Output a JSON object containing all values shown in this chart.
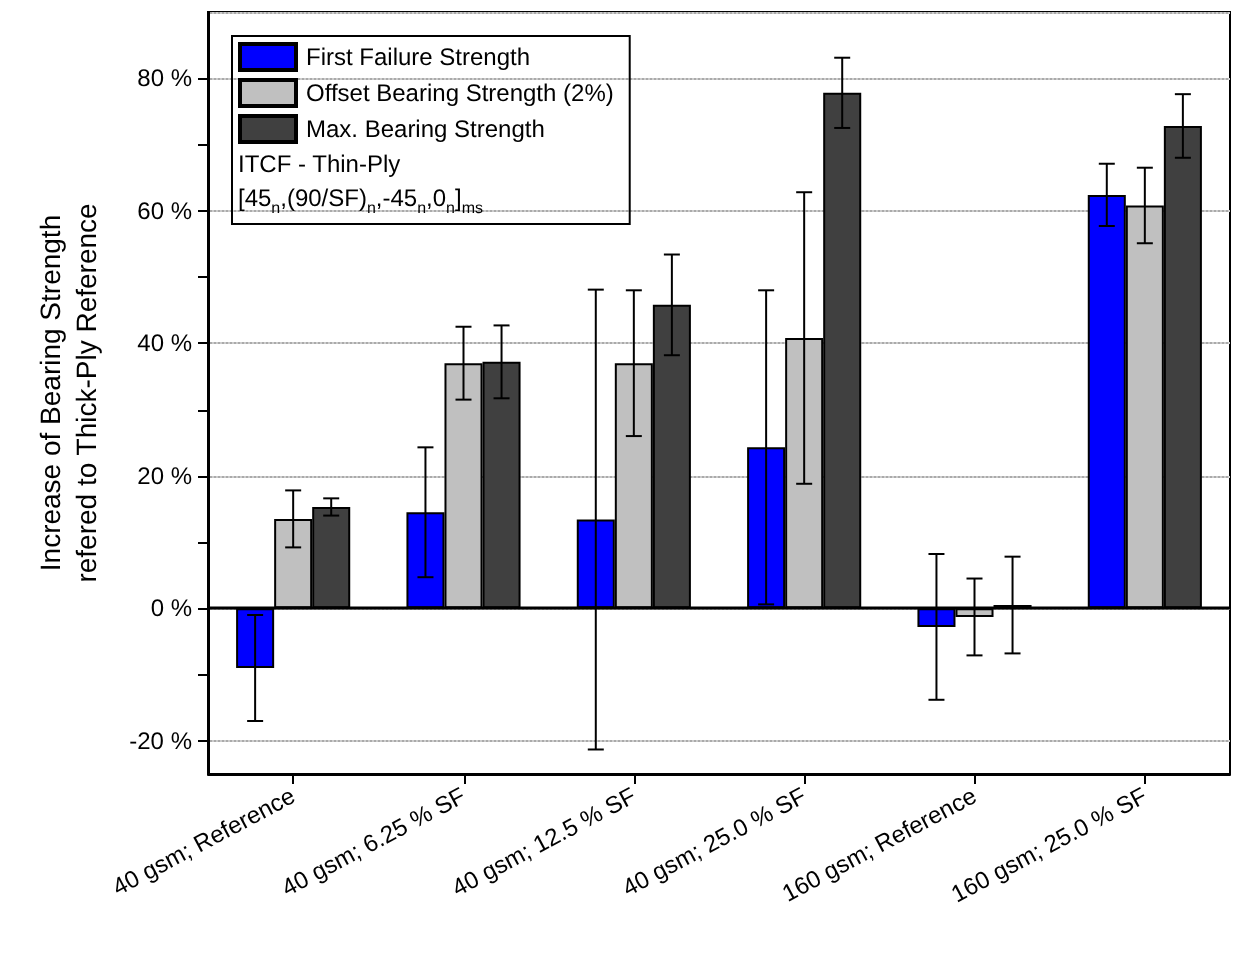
{
  "chart_data": {
    "type": "bar",
    "ylabel": "Increase of Bearing Strength\nrefered to Thick-Ply Reference",
    "categories": [
      "40 gsm; Reference",
      "40 gsm; 6.25 % SF",
      "40 gsm; 12.5 % SF",
      "40 gsm; 25.0 % SF",
      "160 gsm; Reference",
      "160 gsm; 25.0 % SF"
    ],
    "series": [
      {
        "name": "First Failure Strength",
        "color": "#0000ff",
        "values": [
          -9,
          14.5,
          13.4,
          24.3,
          -2.8,
          62.4
        ],
        "errors": [
          8,
          9.8,
          34.7,
          23.7,
          11,
          4.7
        ]
      },
      {
        "name": "Offset Bearing Strength (2%)",
        "color": "#c0c0c0",
        "values": [
          13.5,
          37,
          37,
          40.8,
          -1.3,
          60.8
        ],
        "errors": [
          4.3,
          5.5,
          11,
          22,
          5.8,
          5.7
        ]
      },
      {
        "name": "Max. Bearing Strength",
        "color": "#404040",
        "values": [
          15.3,
          37.2,
          45.8,
          77.8,
          0.5,
          72.8
        ],
        "errors": [
          1.3,
          5.5,
          7.6,
          5.3,
          7.3,
          4.8
        ]
      }
    ],
    "ylim": [
      -25,
      90
    ],
    "yticks": [
      {
        "value": -20,
        "label": "-20 %"
      },
      {
        "value": -10,
        "label": null
      },
      {
        "value": 0,
        "label": "0 %"
      },
      {
        "value": 10,
        "label": null
      },
      {
        "value": 20,
        "label": "20 %"
      },
      {
        "value": 30,
        "label": null
      },
      {
        "value": 40,
        "label": "40 %"
      },
      {
        "value": 50,
        "label": null
      },
      {
        "value": 60,
        "label": "60 %"
      },
      {
        "value": 70,
        "label": null
      },
      {
        "value": 80,
        "label": "80 %"
      }
    ],
    "grid": "y",
    "legend": "top left",
    "annotations": [
      "ITCF - Thin-Ply",
      "[45$_{n}$,(90/SF)$_{n}$,-45$_{n}$,0$_{n}$]$_{ms}$"
    ]
  }
}
